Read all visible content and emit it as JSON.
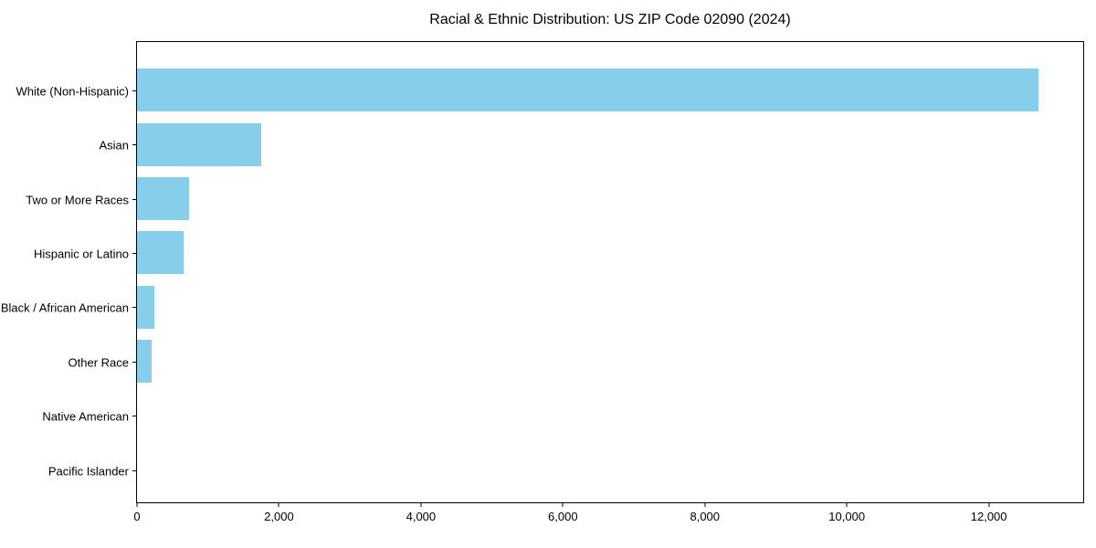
{
  "chart_data": {
    "type": "bar",
    "orientation": "horizontal",
    "title": "Racial & Ethnic Distribution: US ZIP Code 02090 (2024)",
    "categories": [
      "White (Non-Hispanic)",
      "Asian",
      "Two or More Races",
      "Hispanic or Latino",
      "Black / African American",
      "Other Race",
      "Native American",
      "Pacific Islander"
    ],
    "values": [
      12700,
      1750,
      730,
      660,
      245,
      210,
      0,
      0
    ],
    "xlabel": "",
    "ylabel": "",
    "xlim": [
      0,
      13330
    ],
    "x_ticks": [
      0,
      2000,
      4000,
      6000,
      8000,
      10000,
      12000
    ],
    "x_tick_labels": [
      "0",
      "2,000",
      "4,000",
      "6,000",
      "8,000",
      "10,000",
      "12,000"
    ],
    "bar_color": "#87CEEB",
    "axis_color": "#000000",
    "text_color": "#000000",
    "background_color": "#ffffff",
    "grid": false,
    "legend": "none"
  }
}
